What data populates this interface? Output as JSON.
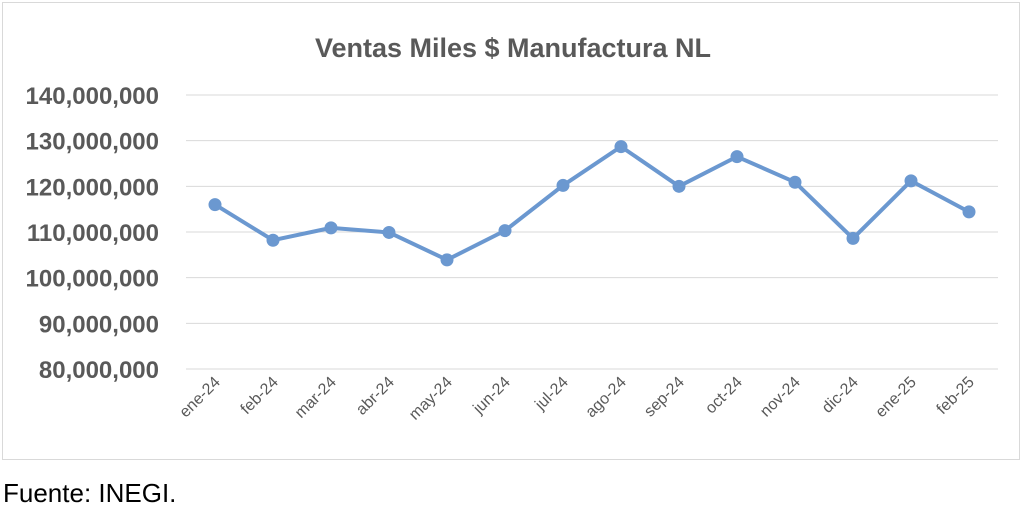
{
  "chart_data": {
    "type": "line",
    "title": "Ventas Miles $ Manufactura NL",
    "xlabel": "",
    "ylabel": "",
    "categories": [
      "ene-24",
      "feb-24",
      "mar-24",
      "abr-24",
      "may-24",
      "jun-24",
      "jul-24",
      "ago-24",
      "sep-24",
      "oct-24",
      "nov-24",
      "dic-24",
      "ene-25",
      "feb-25"
    ],
    "series": [
      {
        "values": [
          116000000,
          108200000,
          110900000,
          109900000,
          103900000,
          110300000,
          120200000,
          128700000,
          120000000,
          126500000,
          120900000,
          108600000,
          121200000,
          114400000
        ]
      }
    ],
    "ylim": [
      80000000,
      140000000
    ],
    "yticks": [
      80000000,
      90000000,
      100000000,
      110000000,
      120000000,
      130000000,
      140000000
    ],
    "ytick_labels": [
      "80,000,000",
      "90,000,000",
      "100,000,000",
      "110,000,000",
      "120,000,000",
      "130,000,000",
      "140,000,000"
    ],
    "grid": true,
    "legend": "none",
    "colors": {
      "line": "#6b98d0",
      "grid": "#d9d9d9",
      "text": "#595959"
    }
  },
  "source_note": "Fuente: INEGI."
}
